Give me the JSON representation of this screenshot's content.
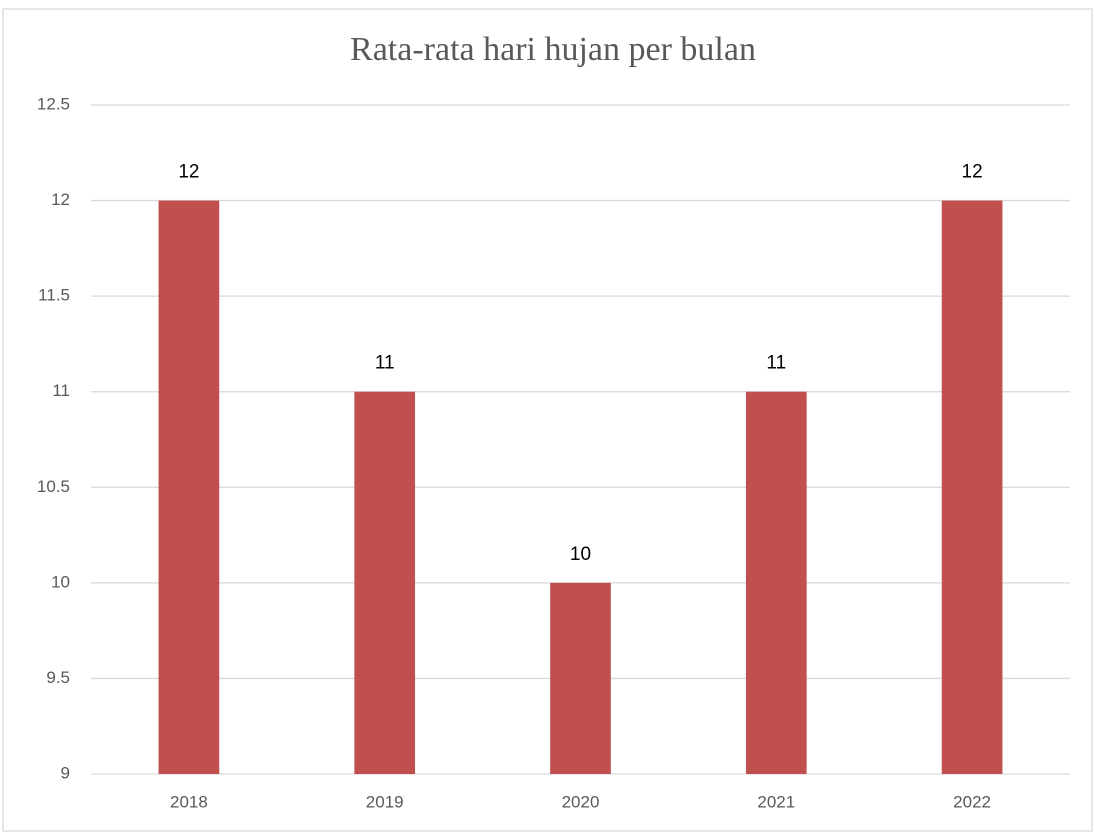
{
  "chart_data": {
    "type": "bar",
    "title": "Rata-rata hari hujan per bulan",
    "categories": [
      "2018",
      "2019",
      "2020",
      "2021",
      "2022"
    ],
    "values": [
      12,
      11,
      10,
      11,
      12
    ],
    "color": "#c0504d",
    "ylim": [
      9,
      12.5
    ],
    "yticks": [
      9,
      9.5,
      10,
      10.5,
      11,
      11.5,
      12,
      12.5
    ],
    "grid": true
  }
}
